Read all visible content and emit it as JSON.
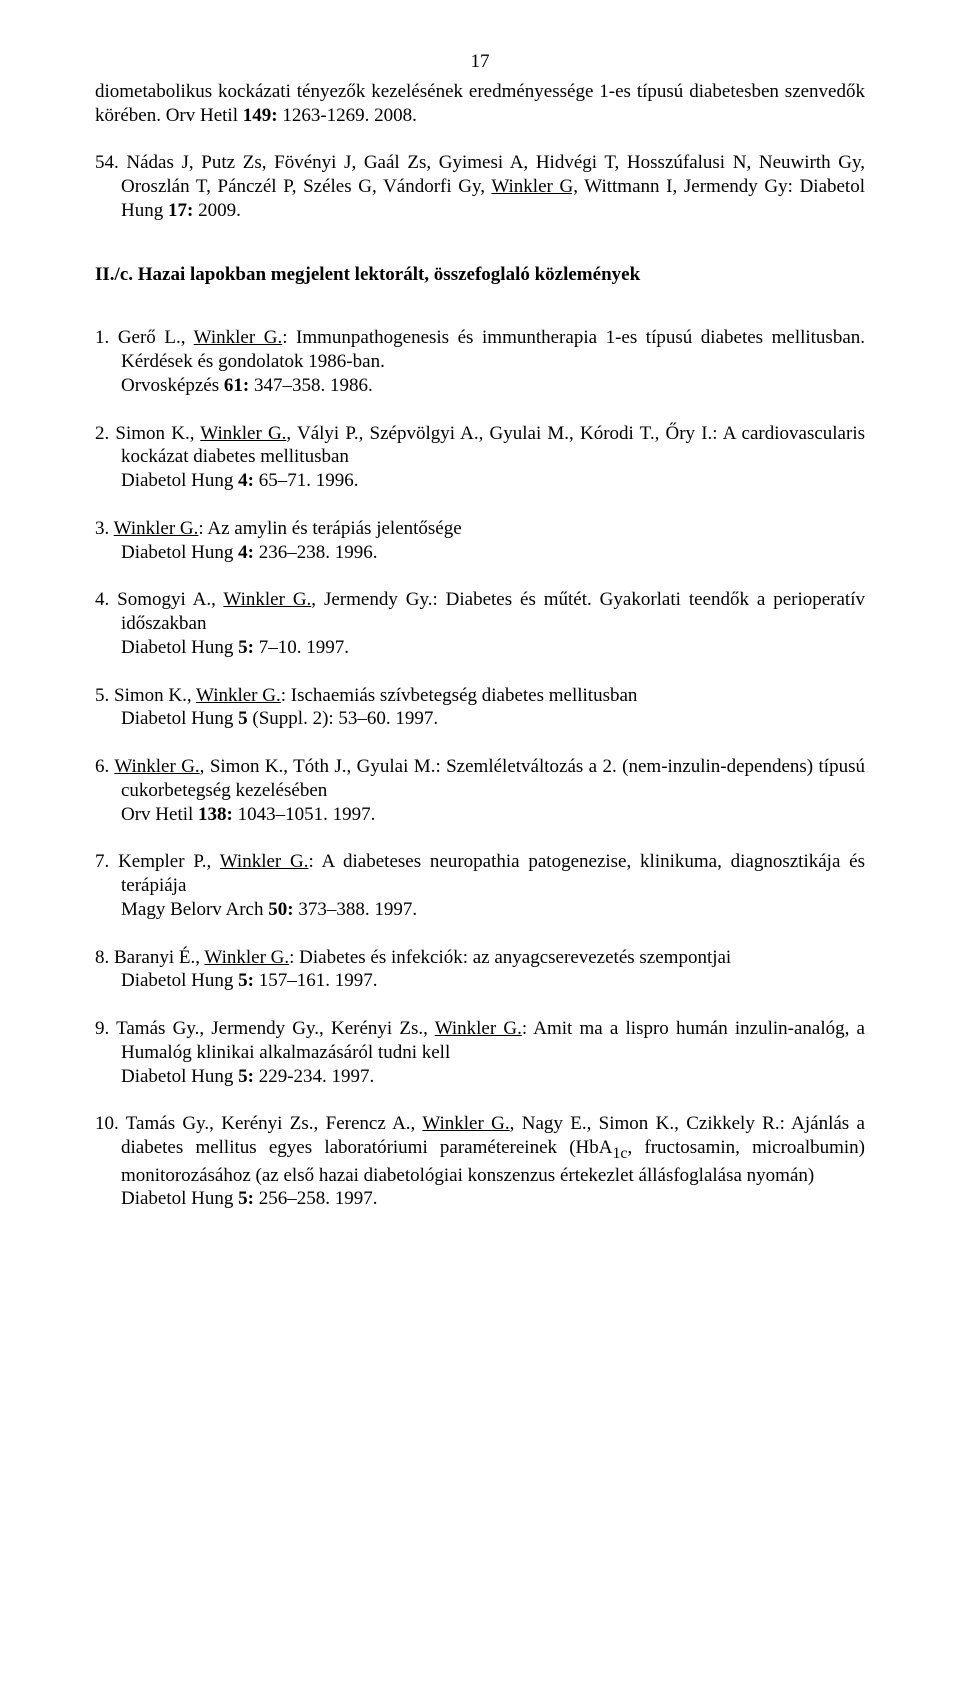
{
  "page_number": "17",
  "entries": [
    {
      "text": "diometabolikus kockázati tényezők kezelésének eredményessége 1-es típusú diabetesben szenvedők körében. Orv Hetil ",
      "bold": "149:",
      "tail": " 1263-1269. 2008."
    },
    {
      "prefix": "54. Nádas J, Putz Zs, Fövényi J, Gaál Zs, Gyimesi A, Hidvégi T, Hosszúfalusi N, Neuwirth Gy, Oroszlán T, Pánczél P, Széles G, Vándorfi Gy, ",
      "underline": "Winkler G,",
      "mid": " Wittmann I, Jermendy Gy: Diabetol Hung ",
      "bold": "17:",
      "tail": " 2009."
    }
  ],
  "section_heading": "II./c. Hazai lapokban megjelent lektorált, összefoglaló közlemények",
  "list": [
    {
      "num": " 1. ",
      "parts": [
        {
          "t": "Gerő L., "
        },
        {
          "t": "Winkler G.",
          "u": true
        },
        {
          "t": ": Immunpathogenesis és immuntherapia 1-es típusú diabetes mellitusban. Kérdések és gondolatok 1986-ban."
        }
      ],
      "line2_pre": "Orvosképzés  ",
      "line2_bold": "61:",
      "line2_tail": "  347–358.  1986."
    },
    {
      "num": " 2. ",
      "parts": [
        {
          "t": "Simon K., "
        },
        {
          "t": "Winkler G.",
          "u": true
        },
        {
          "t": ", Vályi P., Szépvölgyi A., Gyulai M., Kórodi T., Őry I.: A cardiovascularis kockázat diabetes mellitusban"
        }
      ],
      "line2_pre": "Diabetol Hung  ",
      "line2_bold": "4:",
      "line2_tail": "  65–71.  1996."
    },
    {
      "num": " 3. ",
      "parts": [
        {
          "t": "Winkler G.",
          "u": true
        },
        {
          "t": ": Az amylin és terápiás jelentősége"
        }
      ],
      "line2_pre": "Diabetol Hung  ",
      "line2_bold": "4:",
      "line2_tail": "  236–238.  1996."
    },
    {
      "num": " 4. ",
      "parts": [
        {
          "t": "Somogyi A., "
        },
        {
          "t": "Winkler G.",
          "u": true
        },
        {
          "t": ", Jermendy Gy.: Diabetes és műtét. Gyakorlati teendők a perioperatív időszakban"
        }
      ],
      "line2_pre": "Diabetol Hung  ",
      "line2_bold": "5:",
      "line2_tail": "  7–10.  1997."
    },
    {
      "num": " 5. ",
      "parts": [
        {
          "t": "Simon K., "
        },
        {
          "t": "Winkler G.",
          "u": true
        },
        {
          "t": ": Ischaemiás szívbetegség diabetes mellitusban"
        }
      ],
      "line2_pre": "Diabetol Hung ",
      "line2_bold": "5",
      "line2_tail": " (Suppl. 2): 53–60. 1997."
    },
    {
      "num": " 6. ",
      "parts": [
        {
          "t": "Winkler G.",
          "u": true
        },
        {
          "t": ", Simon K., Tóth J., Gyulai M.: Szemléletváltozás a 2. (nem-inzulin-dependens) típusú cukorbetegség kezelésében"
        }
      ],
      "line2_pre": "Orv Hetil  ",
      "line2_bold": "138:",
      "line2_tail": " 1043–1051.  1997."
    },
    {
      "num": " 7. ",
      "parts": [
        {
          "t": "Kempler P., "
        },
        {
          "t": "Winkler G.",
          "u": true
        },
        {
          "t": ": A diabeteses neuropathia patogenezise, klinikuma, diagnosztikája és terápiája"
        }
      ],
      "line2_pre": "Magy Belorv Arch  ",
      "line2_bold": "50:",
      "line2_tail": " 373–388.  1997."
    },
    {
      "num": " 8. ",
      "parts": [
        {
          "t": "Baranyi É., "
        },
        {
          "t": "Winkler G.",
          "u": true
        },
        {
          "t": ": Diabetes és infekciók: az anyagcserevezetés szempontjai"
        }
      ],
      "line2_pre": "Diabetol Hung  ",
      "line2_bold": "5:",
      "line2_tail": " 157–161.  1997."
    },
    {
      "num": " 9. ",
      "parts": [
        {
          "t": "Tamás Gy., Jermendy Gy., Kerényi Zs., "
        },
        {
          "t": "Winkler G.",
          "u": true
        },
        {
          "t": ": Amit ma a lispro humán inzulin-analóg, a Humalóg klinikai alkalmazásáról tudni kell"
        }
      ],
      "line2_pre": "Diabetol Hung  ",
      "line2_bold": "5:",
      "line2_tail": "  229-234.  1997."
    },
    {
      "num": "10. ",
      "parts": [
        {
          "t": "Tamás Gy., Kerényi Zs., Ferencz A., "
        },
        {
          "t": "Winkler G.",
          "u": true
        },
        {
          "t": ", Nagy E., Simon K., Czikkely R.: Ajánlás a diabetes mellitus egyes laboratóriumi paramétereinek (HbA"
        },
        {
          "t": "1c",
          "sub": true
        },
        {
          "t": ",  fructosamin, microalbumin) monitorozásához (az első hazai diabetológiai konszenzus értekezlet állásfoglalása nyomán)"
        }
      ],
      "line2_pre": "Diabetol Hung  ",
      "line2_bold": "5:",
      "line2_tail": " 256–258.  1997."
    }
  ]
}
